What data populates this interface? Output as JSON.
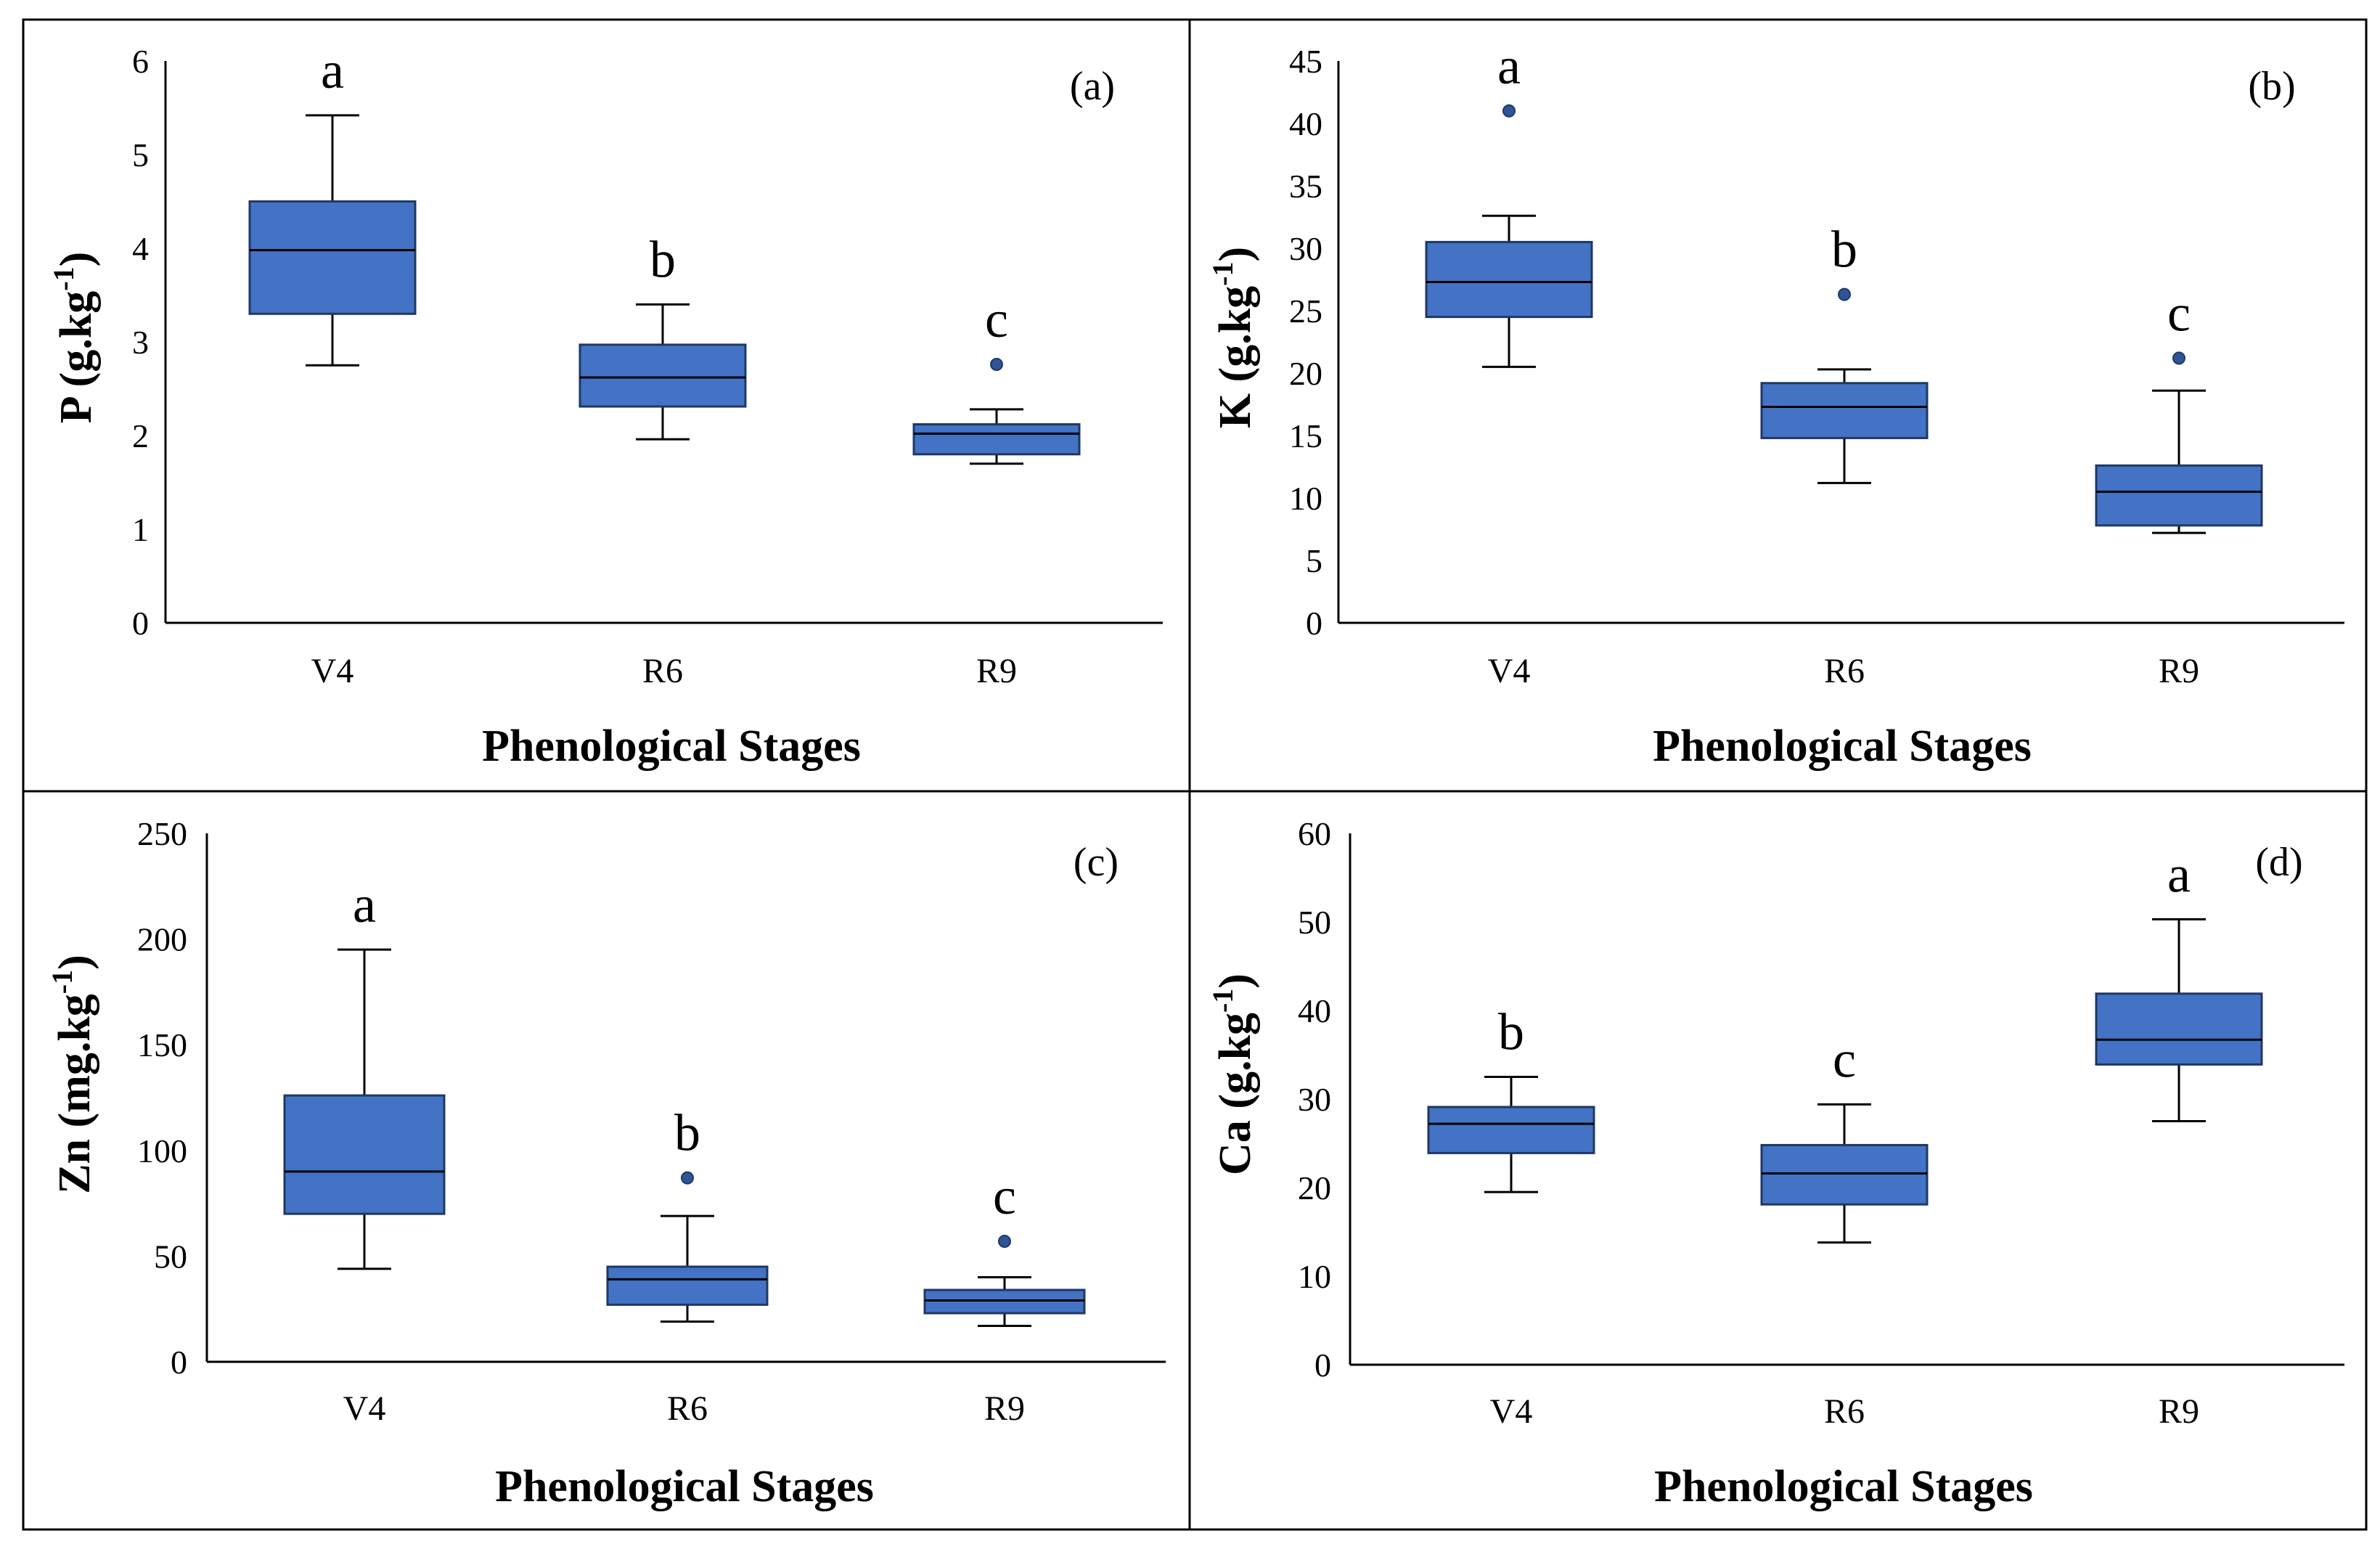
{
  "figure": {
    "colors": {
      "box_fill": "#4472C4",
      "box_stroke": "#1F3864",
      "outlier": "#2F5597",
      "axis": "#000000"
    }
  },
  "chart_data": [
    {
      "type": "boxplot",
      "panel_label": "(a)",
      "ylabel_main": "P (g.kg",
      "ylabel_sup": "-1",
      "ylabel_close": ")",
      "xlabel": "Phenological Stages",
      "ylim": [
        0,
        6
      ],
      "yticks": [
        "0",
        "1",
        "2",
        "3",
        "4",
        "5",
        "6"
      ],
      "categories": [
        "V4",
        "R6",
        "R9"
      ],
      "boxes": [
        {
          "whisker_low": 2.75,
          "q1": 3.3,
          "median": 3.98,
          "q3": 4.5,
          "whisker_high": 5.42,
          "outliers": [],
          "letter": "a"
        },
        {
          "whisker_low": 1.96,
          "q1": 2.31,
          "median": 2.62,
          "q3": 2.97,
          "whisker_high": 3.4,
          "outliers": [],
          "letter": "b"
        },
        {
          "whisker_low": 1.7,
          "q1": 1.8,
          "median": 2.02,
          "q3": 2.12,
          "whisker_high": 2.28,
          "outliers": [
            2.76
          ],
          "letter": "c"
        }
      ]
    },
    {
      "type": "boxplot",
      "panel_label": "(b)",
      "ylabel_main": "K (g.kg",
      "ylabel_sup": "-1",
      "ylabel_close": ")",
      "xlabel": "Phenological Stages",
      "ylim": [
        0,
        45
      ],
      "yticks": [
        "0",
        "5",
        "10",
        "15",
        "20",
        "25",
        "30",
        "35",
        "40",
        "45"
      ],
      "categories": [
        "V4",
        "R6",
        "R9"
      ],
      "boxes": [
        {
          "whisker_low": 20.5,
          "q1": 24.5,
          "median": 27.3,
          "q3": 30.5,
          "whisker_high": 32.6,
          "outliers": [
            41
          ],
          "letter": "a"
        },
        {
          "whisker_low": 11.2,
          "q1": 14.8,
          "median": 17.3,
          "q3": 19.2,
          "whisker_high": 20.3,
          "outliers": [
            26.3
          ],
          "letter": "b"
        },
        {
          "whisker_low": 7.2,
          "q1": 7.8,
          "median": 10.5,
          "q3": 12.6,
          "whisker_high": 18.6,
          "outliers": [
            21.2
          ],
          "letter": "c"
        }
      ]
    },
    {
      "type": "boxplot",
      "panel_label": "(c)",
      "ylabel_main": "Zn (mg.kg",
      "ylabel_sup": "-1",
      "ylabel_close": ")",
      "xlabel": "Phenological Stages",
      "ylim": [
        0,
        250
      ],
      "yticks": [
        "0",
        "50",
        "100",
        "150",
        "200",
        "250"
      ],
      "categories": [
        "V4",
        "R6",
        "R9"
      ],
      "boxes": [
        {
          "whisker_low": 44,
          "q1": 70,
          "median": 90,
          "q3": 126,
          "whisker_high": 195,
          "outliers": [],
          "letter": "a"
        },
        {
          "whisker_low": 19,
          "q1": 27,
          "median": 39,
          "q3": 45,
          "whisker_high": 69,
          "outliers": [
            87
          ],
          "letter": "b"
        },
        {
          "whisker_low": 17,
          "q1": 23,
          "median": 29,
          "q3": 34,
          "whisker_high": 40,
          "outliers": [
            57
          ],
          "letter": "c"
        }
      ]
    },
    {
      "type": "boxplot",
      "panel_label": "(d)",
      "ylabel_main": "Ca (g.kg",
      "ylabel_sup": "-1",
      "ylabel_close": ")",
      "xlabel": "Phenological Stages",
      "ylim": [
        0,
        60
      ],
      "yticks": [
        "0",
        "10",
        "20",
        "30",
        "40",
        "50",
        "60"
      ],
      "categories": [
        "V4",
        "R6",
        "R9"
      ],
      "boxes": [
        {
          "whisker_low": 19.5,
          "q1": 23.9,
          "median": 27.2,
          "q3": 29.1,
          "whisker_high": 32.5,
          "outliers": [],
          "letter": "b"
        },
        {
          "whisker_low": 13.8,
          "q1": 18.1,
          "median": 21.6,
          "q3": 24.8,
          "whisker_high": 29.4,
          "outliers": [],
          "letter": "c"
        },
        {
          "whisker_low": 27.5,
          "q1": 33.9,
          "median": 36.7,
          "q3": 41.9,
          "whisker_high": 50.3,
          "outliers": [],
          "letter": "a"
        }
      ]
    }
  ]
}
